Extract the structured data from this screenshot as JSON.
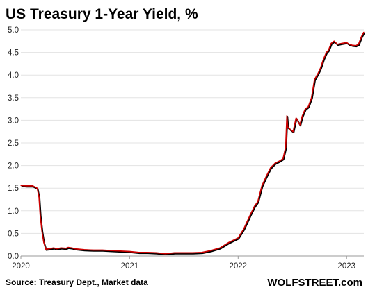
{
  "chart_data": {
    "type": "line",
    "title": "US Treasury 1-Year Yield, %",
    "xlabel": "",
    "ylabel": "",
    "source": "Source: Treasury Dept., Market data",
    "brand": "WOLFSTREET.com",
    "ylim": [
      0,
      5
    ],
    "yticks": [
      "0.0",
      "0.5",
      "1.0",
      "1.5",
      "2.0",
      "2.5",
      "3.0",
      "3.5",
      "4.0",
      "4.5",
      "5.0"
    ],
    "xlim": [
      "2020-01-01",
      "2023-02-28"
    ],
    "xticks": [
      {
        "date": "2020-01-01",
        "label": "2020"
      },
      {
        "date": "2021-01-01",
        "label": "2021"
      },
      {
        "date": "2022-01-01",
        "label": "2022"
      },
      {
        "date": "2023-01-01",
        "label": "2023"
      }
    ],
    "grid": true,
    "series": [
      {
        "name": "",
        "color": "#cc0000",
        "shadow_color": "#000000",
        "x": [
          "2020-01-01",
          "2020-01-20",
          "2020-02-10",
          "2020-02-25",
          "2020-03-02",
          "2020-03-06",
          "2020-03-12",
          "2020-03-18",
          "2020-03-25",
          "2020-04-05",
          "2020-04-20",
          "2020-05-01",
          "2020-05-15",
          "2020-06-01",
          "2020-06-08",
          "2020-06-20",
          "2020-07-01",
          "2020-08-01",
          "2020-09-01",
          "2020-10-01",
          "2020-11-01",
          "2020-12-01",
          "2021-01-01",
          "2021-02-01",
          "2021-03-01",
          "2021-04-01",
          "2021-05-01",
          "2021-06-01",
          "2021-07-01",
          "2021-08-01",
          "2021-09-01",
          "2021-10-01",
          "2021-11-01",
          "2021-12-01",
          "2022-01-01",
          "2022-01-20",
          "2022-02-10",
          "2022-02-25",
          "2022-03-08",
          "2022-03-22",
          "2022-04-05",
          "2022-04-20",
          "2022-05-05",
          "2022-05-20",
          "2022-06-01",
          "2022-06-10",
          "2022-06-14",
          "2022-06-17",
          "2022-06-25",
          "2022-07-05",
          "2022-07-15",
          "2022-07-28",
          "2022-08-05",
          "2022-08-15",
          "2022-08-25",
          "2022-09-05",
          "2022-09-15",
          "2022-09-28",
          "2022-10-05",
          "2022-10-15",
          "2022-10-25",
          "2022-11-01",
          "2022-11-10",
          "2022-11-20",
          "2022-12-01",
          "2022-12-15",
          "2023-01-01",
          "2023-01-10",
          "2023-01-20",
          "2023-02-01",
          "2023-02-10",
          "2023-02-20",
          "2023-02-28"
        ],
        "y": [
          1.56,
          1.55,
          1.55,
          1.5,
          1.3,
          0.9,
          0.55,
          0.3,
          0.15,
          0.16,
          0.18,
          0.16,
          0.18,
          0.17,
          0.19,
          0.18,
          0.16,
          0.14,
          0.13,
          0.13,
          0.12,
          0.11,
          0.1,
          0.08,
          0.08,
          0.07,
          0.05,
          0.07,
          0.07,
          0.07,
          0.08,
          0.12,
          0.18,
          0.3,
          0.4,
          0.6,
          0.9,
          1.1,
          1.2,
          1.55,
          1.75,
          1.95,
          2.05,
          2.1,
          2.15,
          2.4,
          3.1,
          2.85,
          2.8,
          2.75,
          3.05,
          2.9,
          3.1,
          3.25,
          3.3,
          3.5,
          3.9,
          4.05,
          4.15,
          4.35,
          4.5,
          4.55,
          4.7,
          4.75,
          4.68,
          4.7,
          4.72,
          4.68,
          4.66,
          4.65,
          4.68,
          4.85,
          4.95
        ]
      }
    ]
  }
}
